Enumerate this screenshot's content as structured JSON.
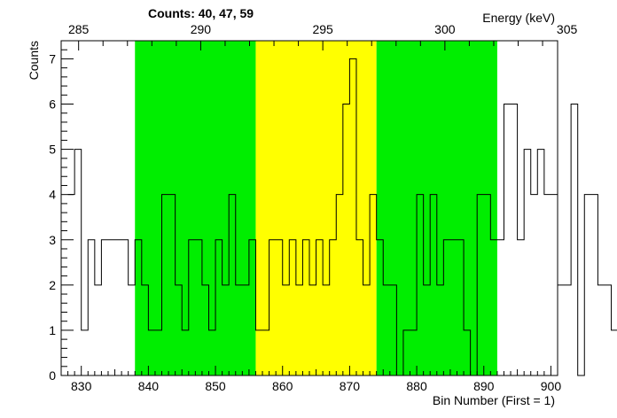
{
  "chart_data": {
    "type": "histogram",
    "title": "Counts:   40,   47,   59",
    "xlabel": "Bin Number (First = 1)",
    "ylabel": "Counts",
    "top_axis_label": "Energy (keV)",
    "xlim": [
      827,
      901
    ],
    "ylim": [
      0,
      7.4
    ],
    "x_ticks": [
      830,
      840,
      850,
      860,
      870,
      880,
      890,
      900
    ],
    "y_ticks": [
      0,
      1,
      2,
      3,
      4,
      5,
      6,
      7
    ],
    "top_ticks": [
      {
        "label": "285",
        "bin": 829.6
      },
      {
        "label": "290",
        "bin": 847.8
      },
      {
        "label": "295",
        "bin": 866.0
      },
      {
        "label": "300",
        "bin": 884.2
      },
      {
        "label": "305",
        "bin": 902.4
      }
    ],
    "regions": [
      {
        "from": 838,
        "to": 856,
        "color": "#00ee00"
      },
      {
        "from": 856,
        "to": 874,
        "color": "#ffff00"
      },
      {
        "from": 874,
        "to": 892,
        "color": "#00ee00"
      }
    ],
    "bin_start": 828,
    "bin_width": 1,
    "values": [
      4,
      5,
      1,
      3,
      2,
      3,
      3,
      3,
      3,
      2,
      3,
      2,
      1,
      1,
      4,
      4,
      2,
      1,
      3,
      3,
      2,
      1,
      3,
      2,
      4,
      2,
      2,
      3,
      1,
      1,
      3,
      3,
      2,
      3,
      2,
      3,
      2,
      3,
      2,
      3,
      4,
      6,
      7,
      3,
      2,
      4,
      3,
      2,
      2,
      0,
      1,
      1,
      4,
      2,
      4,
      2,
      3,
      3,
      3,
      1,
      0,
      4,
      4,
      3,
      3,
      6,
      6,
      3,
      5,
      4,
      5,
      4,
      4,
      2,
      2,
      6,
      0,
      4,
      4,
      2,
      2,
      1,
      0
    ]
  }
}
